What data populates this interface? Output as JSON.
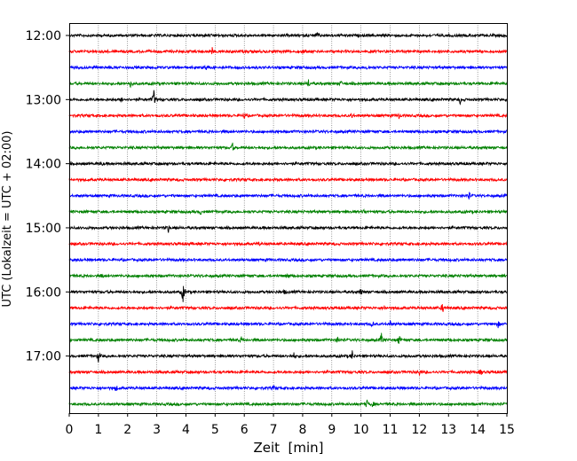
{
  "chart_data": {
    "type": "line",
    "title": "",
    "xlabel": "Zeit  [min]",
    "ylabel": "UTC (Lokalzeit = UTC + 02:00)",
    "xlim": [
      0,
      15
    ],
    "x_ticks": [
      "0",
      "1",
      "2",
      "3",
      "4",
      "5",
      "6",
      "7",
      "8",
      "9",
      "10",
      "11",
      "12",
      "13",
      "14",
      "15"
    ],
    "y_tick_labels": [
      "12:00",
      "13:00",
      "14:00",
      "15:00",
      "16:00",
      "17:00"
    ],
    "grid": "vertical dotted at each minute",
    "legend": "none",
    "row_interval_minutes": 15,
    "colors": [
      "#000000",
      "#ff0000",
      "#0000ff",
      "#008000"
    ],
    "rows": [
      {
        "start": "12:00",
        "color": "#000000",
        "spikes": [
          [
            8.5,
            0.5
          ]
        ]
      },
      {
        "start": "12:15",
        "color": "#ff0000",
        "spikes": [
          [
            4.9,
            0.5
          ],
          [
            8.0,
            0.4
          ]
        ]
      },
      {
        "start": "12:30",
        "color": "#0000ff",
        "spikes": [
          [
            4.7,
            0.5
          ],
          [
            10.2,
            0.3
          ]
        ]
      },
      {
        "start": "12:45",
        "color": "#008000",
        "spikes": [
          [
            2.1,
            1.0
          ],
          [
            8.2,
            0.7
          ],
          [
            9.3,
            0.5
          ]
        ]
      },
      {
        "start": "13:00",
        "color": "#000000",
        "spikes": [
          [
            1.8,
            0.5
          ],
          [
            2.9,
            1.6
          ],
          [
            13.4,
            0.6
          ]
        ]
      },
      {
        "start": "13:15",
        "color": "#ff0000",
        "spikes": [
          [
            6.0,
            0.5
          ],
          [
            9.7,
            0.4
          ],
          [
            11.3,
            0.4
          ]
        ]
      },
      {
        "start": "13:30",
        "color": "#0000ff",
        "spikes": []
      },
      {
        "start": "13:45",
        "color": "#008000",
        "spikes": [
          [
            5.6,
            0.7
          ]
        ]
      },
      {
        "start": "14:00",
        "color": "#000000",
        "spikes": [
          [
            1.1,
            0.4
          ]
        ]
      },
      {
        "start": "14:15",
        "color": "#ff0000",
        "spikes": []
      },
      {
        "start": "14:30",
        "color": "#0000ff",
        "spikes": [
          [
            13.7,
            0.7
          ]
        ]
      },
      {
        "start": "14:45",
        "color": "#008000",
        "spikes": [
          [
            4.5,
            0.4
          ],
          [
            10.1,
            0.4
          ]
        ]
      },
      {
        "start": "15:00",
        "color": "#000000",
        "spikes": [
          [
            3.4,
            0.7
          ]
        ]
      },
      {
        "start": "15:15",
        "color": "#ff0000",
        "spikes": [
          [
            6.5,
            0.3
          ]
        ]
      },
      {
        "start": "15:30",
        "color": "#0000ff",
        "spikes": []
      },
      {
        "start": "15:45",
        "color": "#008000",
        "spikes": [
          [
            1.1,
            0.4
          ],
          [
            7.5,
            0.4
          ]
        ]
      },
      {
        "start": "16:00",
        "color": "#000000",
        "spikes": [
          [
            3.9,
            2.2
          ],
          [
            7.4,
            0.4
          ],
          [
            10.0,
            0.5
          ]
        ]
      },
      {
        "start": "16:15",
        "color": "#ff0000",
        "spikes": [
          [
            12.8,
            0.8
          ],
          [
            10.8,
            0.3
          ]
        ]
      },
      {
        "start": "16:30",
        "color": "#0000ff",
        "spikes": [
          [
            10.4,
            0.6
          ],
          [
            11.0,
            0.5
          ],
          [
            14.7,
            0.5
          ]
        ]
      },
      {
        "start": "16:45",
        "color": "#008000",
        "spikes": [
          [
            5.9,
            0.6
          ],
          [
            10.7,
            1.2
          ],
          [
            11.3,
            1.0
          ],
          [
            9.2,
            0.5
          ]
        ]
      },
      {
        "start": "17:00",
        "color": "#000000",
        "spikes": [
          [
            1.0,
            1.0
          ],
          [
            9.7,
            0.8
          ],
          [
            7.7,
            0.4
          ]
        ]
      },
      {
        "start": "17:15",
        "color": "#ff0000",
        "spikes": [
          [
            14.1,
            0.7
          ],
          [
            12.0,
            0.4
          ]
        ]
      },
      {
        "start": "17:30",
        "color": "#0000ff",
        "spikes": [
          [
            1.6,
            0.6
          ],
          [
            7.0,
            0.4
          ]
        ]
      },
      {
        "start": "17:45",
        "color": "#008000",
        "spikes": [
          [
            10.2,
            0.7
          ],
          [
            10.4,
            0.5
          ]
        ]
      }
    ]
  }
}
